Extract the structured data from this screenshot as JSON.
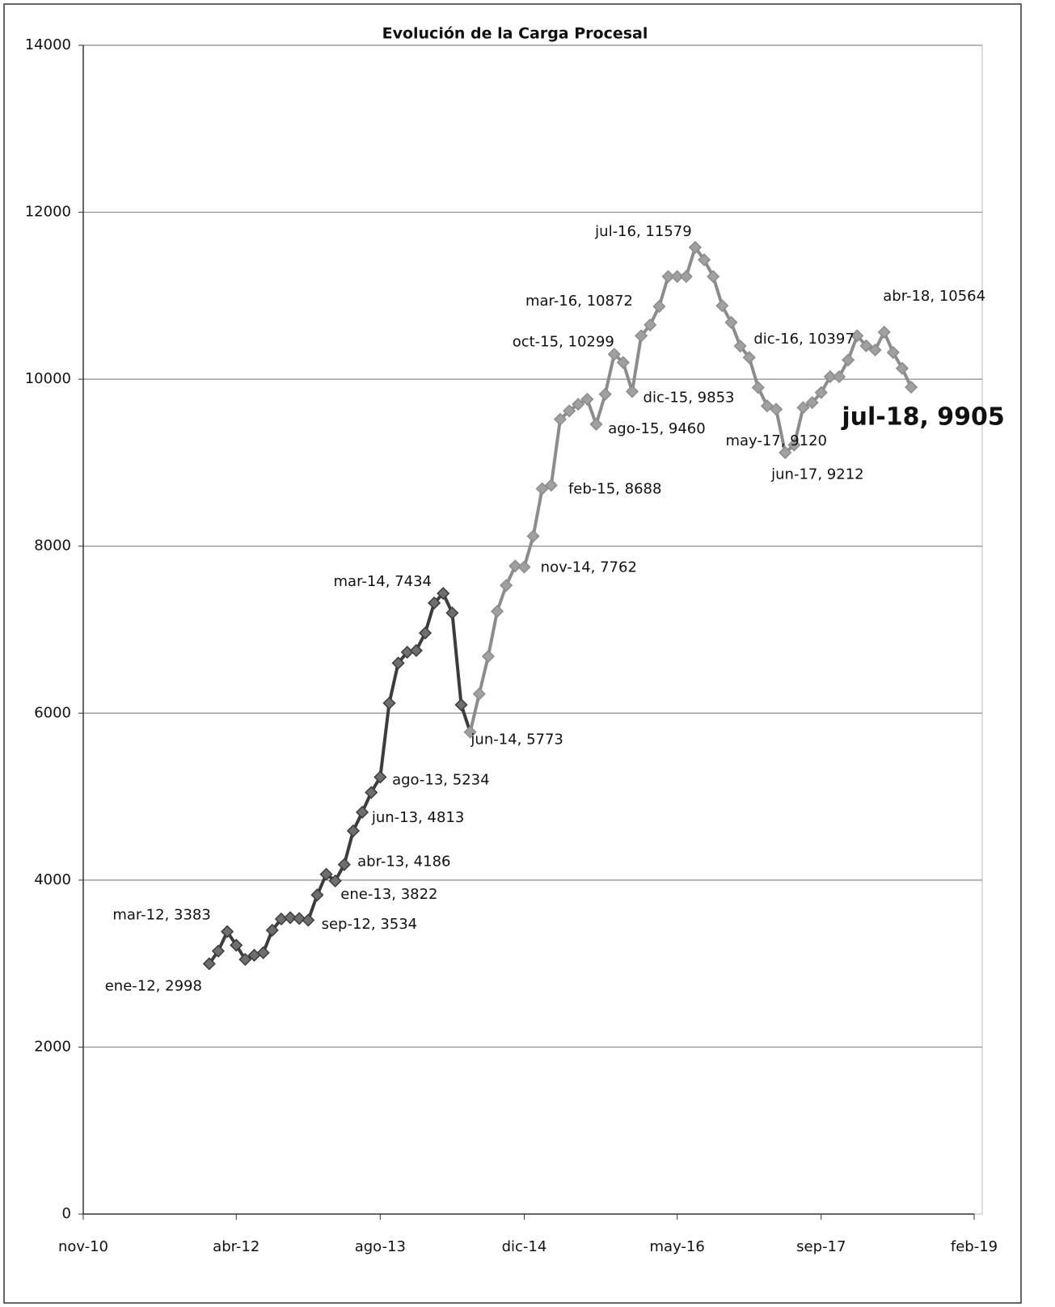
{
  "chart_data": {
    "type": "line",
    "title": "Evolución de la Carga Procesal",
    "xlim": [
      "2010-11",
      "2019-02"
    ],
    "xticks": [
      {
        "value": "2010-11",
        "label": "nov-10"
      },
      {
        "value": "2012-04",
        "label": "abr-12"
      },
      {
        "value": "2013-08",
        "label": "ago-13"
      },
      {
        "value": "2014-12",
        "label": "dic-14"
      },
      {
        "value": "2016-05",
        "label": "may-16"
      },
      {
        "value": "2017-09",
        "label": "sep-17"
      },
      {
        "value": "2019-02",
        "label": "feb-19"
      }
    ],
    "ylim": [
      0,
      14000
    ],
    "yticks": [
      0,
      2000,
      4000,
      6000,
      8000,
      10000,
      12000,
      14000
    ],
    "grid": true,
    "series": [
      {
        "color": "#3c3c3c",
        "marker_color": "#6e6e6e",
        "x": [
          "2012-01",
          "2012-02",
          "2012-03",
          "2012-04",
          "2012-05",
          "2012-06",
          "2012-07",
          "2012-08",
          "2012-09",
          "2012-10",
          "2012-11",
          "2012-12",
          "2013-01",
          "2013-02",
          "2013-03",
          "2013-04",
          "2013-05",
          "2013-06",
          "2013-07",
          "2013-08",
          "2013-09",
          "2013-10",
          "2013-11",
          "2013-12",
          "2014-01",
          "2014-02",
          "2014-03",
          "2014-04",
          "2014-05"
        ],
        "values": [
          2998,
          3150,
          3383,
          3220,
          3050,
          3100,
          3130,
          3400,
          3534,
          3550,
          3540,
          3520,
          3822,
          4070,
          3990,
          4186,
          4590,
          4813,
          5050,
          5234,
          6120,
          6600,
          6730,
          6750,
          6960,
          7320,
          7434,
          7200,
          6100
        ],
        "value_labels": [
          "ene-12, 2998",
          null,
          "mar-12, 3383",
          null,
          null,
          null,
          null,
          null,
          "sep-12, 3534",
          null,
          null,
          null,
          "ene-13, 3822",
          null,
          null,
          "abr-13, 4186",
          null,
          "jun-13, 4813",
          null,
          "ago-13, 5234",
          null,
          null,
          null,
          null,
          null,
          null,
          "mar-14, 7434",
          null,
          null
        ]
      },
      {
        "color": "#8c8c8c",
        "marker_color": "#a0a0a0",
        "x": [
          "2014-06",
          "2014-07",
          "2014-08",
          "2014-09",
          "2014-10",
          "2014-11",
          "2014-12",
          "2015-01",
          "2015-02",
          "2015-03",
          "2015-04",
          "2015-05",
          "2015-06",
          "2015-07",
          "2015-08",
          "2015-09",
          "2015-10",
          "2015-11",
          "2015-12",
          "2016-01",
          "2016-02",
          "2016-03",
          "2016-04",
          "2016-05",
          "2016-06",
          "2016-07",
          "2016-08",
          "2016-09",
          "2016-10",
          "2016-11",
          "2016-12",
          "2017-01",
          "2017-02",
          "2017-03",
          "2017-04",
          "2017-05",
          "2017-06",
          "2017-07",
          "2017-08",
          "2017-09",
          "2017-10",
          "2017-11",
          "2017-12",
          "2018-01",
          "2018-02",
          "2018-03",
          "2018-04",
          "2018-05",
          "2018-06",
          "2018-07"
        ],
        "values": [
          5773,
          6230,
          6680,
          7220,
          7530,
          7762,
          7750,
          8120,
          8688,
          8730,
          9520,
          9620,
          9700,
          9760,
          9460,
          9820,
          10299,
          10200,
          9853,
          10520,
          10650,
          10872,
          11230,
          11230,
          11230,
          11579,
          11430,
          11230,
          10880,
          10680,
          10397,
          10260,
          9900,
          9680,
          9640,
          9120,
          9212,
          9660,
          9720,
          9840,
          10030,
          10030,
          10230,
          10520,
          10400,
          10350,
          10564,
          10320,
          10130,
          9905
        ],
        "value_labels": [
          "jun-14, 5773",
          null,
          null,
          null,
          null,
          "nov-14, 7762",
          null,
          null,
          "feb-15, 8688",
          null,
          null,
          null,
          null,
          null,
          "ago-15, 9460",
          null,
          "oct-15, 10299",
          null,
          "dic-15, 9853",
          null,
          null,
          "mar-16, 10872",
          null,
          null,
          null,
          "jul-16, 11579",
          null,
          null,
          null,
          null,
          "dic-16, 10397",
          null,
          null,
          null,
          null,
          "may-17, 9120",
          "jun-17, 9212",
          null,
          null,
          null,
          null,
          null,
          null,
          null,
          null,
          null,
          "abr-18, 10564",
          null,
          null,
          "jul-18, 9905"
        ]
      }
    ]
  }
}
